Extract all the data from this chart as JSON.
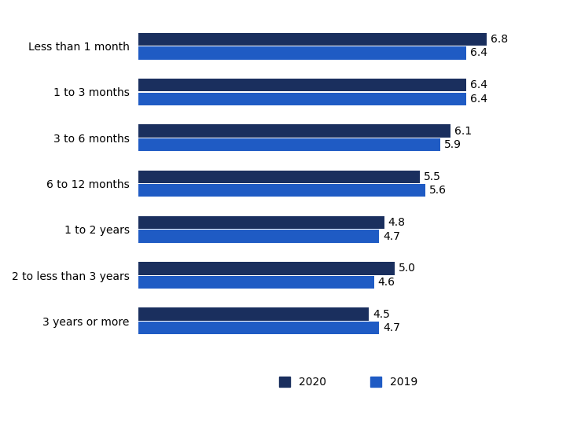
{
  "categories": [
    "Less than 1 month",
    "1 to 3 months",
    "3 to 6 months",
    "6 to 12 months",
    "1 to 2 years",
    "2 to less than 3 years",
    "3 years or more"
  ],
  "values_2020": [
    6.8,
    6.4,
    6.1,
    5.5,
    4.8,
    5.0,
    4.5
  ],
  "values_2019": [
    6.4,
    6.4,
    5.9,
    5.6,
    4.7,
    4.6,
    4.7
  ],
  "color_2020": "#1a2f5e",
  "color_2019": "#1f5bc4",
  "bar_height": 0.28,
  "xlim": [
    0,
    8.2
  ],
  "legend_labels": [
    "2020",
    "2019"
  ],
  "label_fontsize": 10,
  "tick_fontsize": 10,
  "value_fontsize": 10,
  "background_color": "#ffffff"
}
